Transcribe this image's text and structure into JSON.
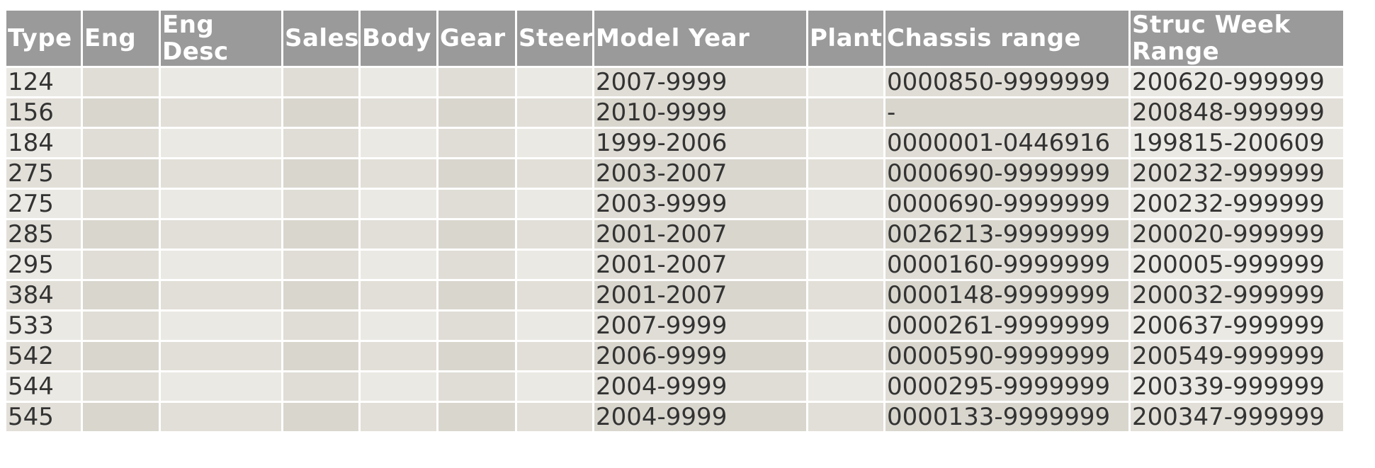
{
  "table": {
    "columns": [
      "Type",
      "Eng",
      "Eng Desc",
      "Sales",
      "Body",
      "Gear",
      "Steer",
      "Model Year",
      "Plant",
      "Chassis range",
      "Struc Week Range"
    ],
    "rows": [
      {
        "type": "124",
        "model_year": "2007-9999",
        "chassis": "0000850-9999999",
        "struc": "200620-999999"
      },
      {
        "type": "156",
        "model_year": "2010-9999",
        "chassis": "-",
        "struc": "200848-999999"
      },
      {
        "type": "184",
        "model_year": "1999-2006",
        "chassis": "0000001-0446916",
        "struc": "199815-200609"
      },
      {
        "type": "275",
        "model_year": "2003-2007",
        "chassis": "0000690-9999999",
        "struc": "200232-999999"
      },
      {
        "type": "275",
        "model_year": "2003-9999",
        "chassis": "0000690-9999999",
        "struc": "200232-999999"
      },
      {
        "type": "285",
        "model_year": "2001-2007",
        "chassis": "0026213-9999999",
        "struc": "200020-999999"
      },
      {
        "type": "295",
        "model_year": "2001-2007",
        "chassis": "0000160-9999999",
        "struc": "200005-999999"
      },
      {
        "type": "384",
        "model_year": "2001-2007",
        "chassis": "0000148-9999999",
        "struc": "200032-999999"
      },
      {
        "type": "533",
        "model_year": "2007-9999",
        "chassis": "0000261-9999999",
        "struc": "200637-999999"
      },
      {
        "type": "542",
        "model_year": "2006-9999",
        "chassis": "0000590-9999999",
        "struc": "200549-999999"
      },
      {
        "type": "544",
        "model_year": "2004-9999",
        "chassis": "0000295-9999999",
        "struc": "200339-999999"
      },
      {
        "type": "545",
        "model_year": "2004-9999",
        "chassis": "0000133-9999999",
        "struc": "200347-999999"
      }
    ]
  }
}
